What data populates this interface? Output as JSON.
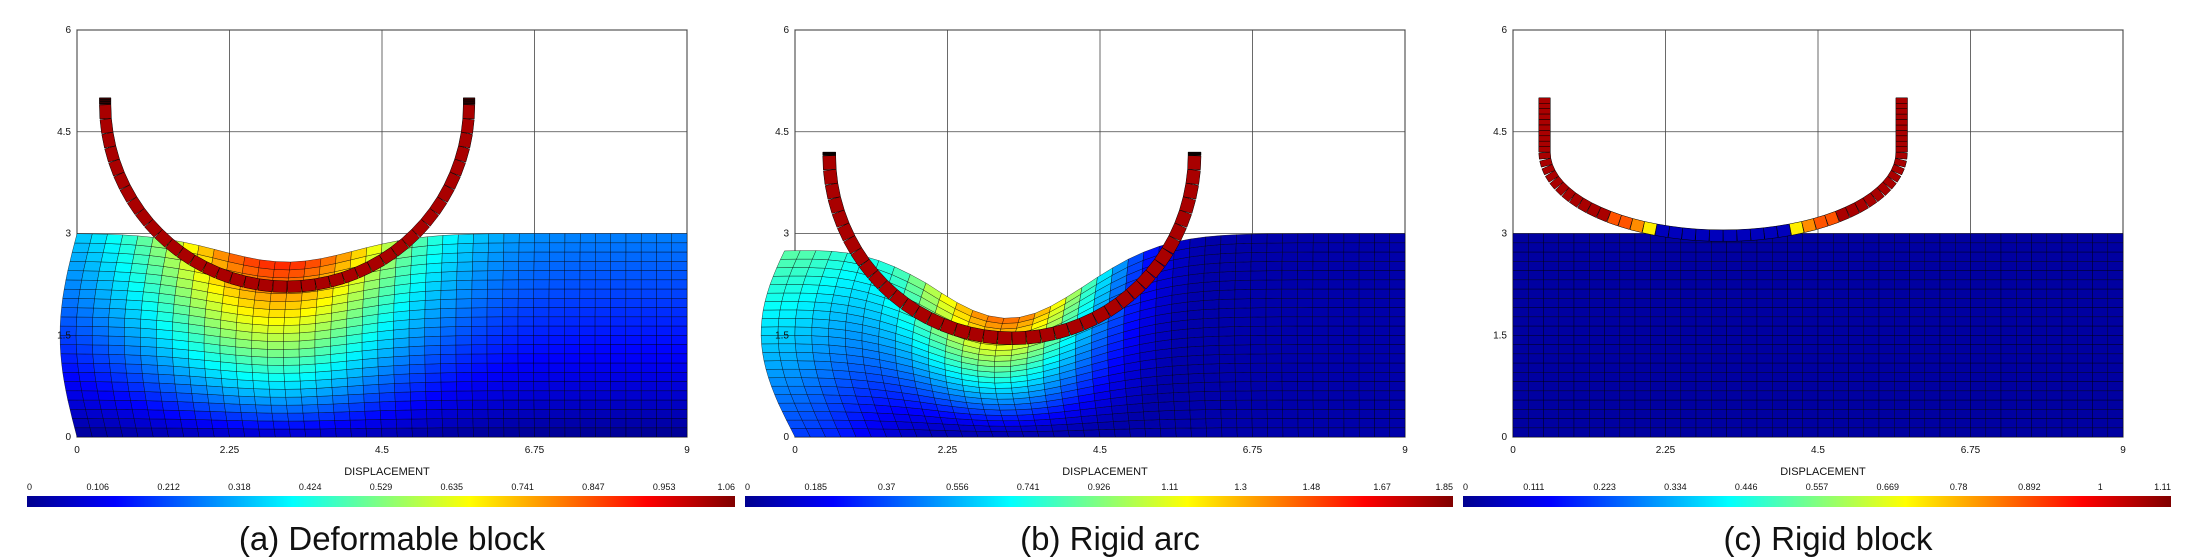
{
  "panels": [
    {
      "id": "a",
      "caption": "(a) Deformable block",
      "legend_title": "DISPLACEMENT",
      "x_ticks": [
        "0",
        "2.25",
        "4.5",
        "6.75",
        "9"
      ],
      "y_ticks": [
        "0",
        "1.5",
        "3",
        "4.5",
        "6"
      ],
      "colorbar_labels": [
        "0",
        "0.106",
        "0.212",
        "0.318",
        "0.424",
        "0.529",
        "0.635",
        "0.741",
        "0.847",
        "0.953",
        "1.06"
      ],
      "variant": "deformable"
    },
    {
      "id": "b",
      "caption": "(b) Rigid arc",
      "legend_title": "DISPLACEMENT",
      "x_ticks": [
        "0",
        "2.25",
        "4.5",
        "6.75",
        "9"
      ],
      "y_ticks": [
        "0",
        "1.5",
        "3",
        "4.5",
        "6"
      ],
      "colorbar_labels": [
        "0",
        "0.185",
        "0.37",
        "0.556",
        "0.741",
        "0.926",
        "1.11",
        "1.3",
        "1.48",
        "1.67",
        "1.85"
      ],
      "variant": "rigid_arc"
    },
    {
      "id": "c",
      "caption": "(c) Rigid block",
      "legend_title": "DISPLACEMENT",
      "x_ticks": [
        "0",
        "2.25",
        "4.5",
        "6.75",
        "9"
      ],
      "y_ticks": [
        "0",
        "1.5",
        "3",
        "4.5",
        "6"
      ],
      "colorbar_labels": [
        "0",
        "0.111",
        "0.223",
        "0.334",
        "0.446",
        "0.557",
        "0.669",
        "0.78",
        "0.892",
        "1",
        "1.11"
      ],
      "variant": "rigid_block"
    }
  ],
  "colors": {
    "colormap": [
      "#00008f",
      "#0000ff",
      "#0080ff",
      "#00ffff",
      "#80ff80",
      "#ffff00",
      "#ff8000",
      "#ff0000",
      "#800000"
    ],
    "grid": "#000000",
    "background": "#ffffff"
  }
}
